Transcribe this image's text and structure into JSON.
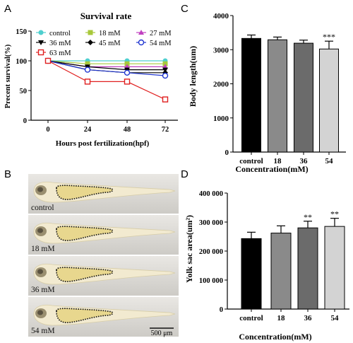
{
  "panel_letters": [
    "A",
    "B",
    "C",
    "D"
  ],
  "chart_data": [
    {
      "panel": "A",
      "type": "line",
      "title": "Survival rate",
      "xlabel": "Hours post fertilization(hpf)",
      "ylabel": "Precent survival(%)",
      "x": [
        0,
        24,
        48,
        72
      ],
      "x_ticks": [
        "0",
        "24",
        "48",
        "72"
      ],
      "y_ticks": [
        "0",
        "50",
        "100",
        "150"
      ],
      "ylim": [
        0,
        150
      ],
      "legend_placement": "top",
      "series": [
        {
          "name": "control",
          "values": [
            100,
            100,
            100,
            100
          ],
          "color": "#4ecfcf",
          "marker": "circle-filled"
        },
        {
          "name": "18 mM",
          "values": [
            100,
            95,
            95,
            95
          ],
          "color": "#a8c83a",
          "marker": "square-filled"
        },
        {
          "name": "27 mM",
          "values": [
            100,
            90,
            90,
            90
          ],
          "color": "#c040c0",
          "marker": "triangle-up"
        },
        {
          "name": "36 mM",
          "values": [
            100,
            90,
            85,
            85
          ],
          "color": "#000000",
          "marker": "triangle-down"
        },
        {
          "name": "45 mM",
          "values": [
            100,
            85,
            80,
            80
          ],
          "color": "#000000",
          "marker": "diamond"
        },
        {
          "name": "54 mM",
          "values": [
            100,
            85,
            80,
            75
          ],
          "color": "#1f35d0",
          "marker": "circle-open"
        },
        {
          "name": "63 mM",
          "values": [
            100,
            65,
            65,
            35
          ],
          "color": "#e02020",
          "marker": "square-open"
        }
      ]
    },
    {
      "panel": "C",
      "type": "bar",
      "xlabel": "Concentration(mM)",
      "ylabel": "Body length(um)",
      "categories": [
        "control",
        "18",
        "36",
        "54"
      ],
      "values": [
        3330,
        3290,
        3190,
        3020
      ],
      "errors": [
        100,
        80,
        90,
        230
      ],
      "colors": [
        "#000000",
        "#8a8a8a",
        "#6b6b6b",
        "#d3d3d3"
      ],
      "significance": [
        "",
        "",
        "",
        "***"
      ],
      "y_ticks": [
        "0",
        "1000",
        "2000",
        "3000",
        "4000"
      ],
      "ylim": [
        0,
        4000
      ]
    },
    {
      "panel": "D",
      "type": "bar",
      "xlabel": "Concentration(mM)",
      "ylabel": "Yolk sac area(um²)",
      "categories": [
        "control",
        "18",
        "36",
        "54"
      ],
      "values": [
        243000,
        262000,
        280000,
        285000
      ],
      "errors": [
        22000,
        25000,
        23000,
        28000
      ],
      "colors": [
        "#000000",
        "#8a8a8a",
        "#6b6b6b",
        "#d3d3d3"
      ],
      "significance": [
        "",
        "",
        "**",
        "**"
      ],
      "y_ticks": [
        "0",
        "100 000",
        "200 000",
        "300 000",
        "400 000"
      ],
      "ylim": [
        0,
        400000
      ]
    }
  ],
  "images": {
    "labels": [
      "control",
      "18 mM",
      "36 mM",
      "54 mM"
    ],
    "scale_bar": "500 μm"
  }
}
